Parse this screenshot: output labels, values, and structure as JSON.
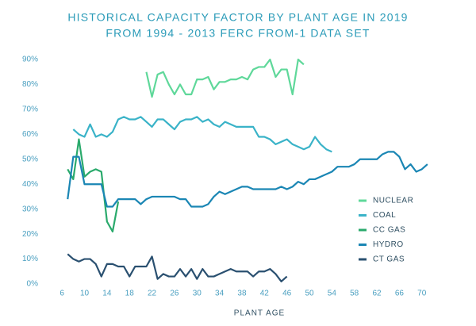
{
  "chart_data": {
    "type": "line",
    "title": "HISTORICAL CAPACITY FACTOR BY PLANT AGE IN 2019",
    "subtitle": "FROM 1994 - 2013 FERC FROM-1 DATA SET",
    "x_label": "PLANT AGE",
    "xlim": [
      4,
      73
    ],
    "xticks": [
      6,
      10,
      14,
      18,
      22,
      26,
      30,
      34,
      38,
      42,
      46,
      50,
      54,
      58,
      62,
      66,
      70
    ],
    "ylim": [
      0,
      90
    ],
    "yticks": [
      {
        "value": 0,
        "label": "0%"
      },
      {
        "value": 10,
        "label": "10%"
      },
      {
        "value": 20,
        "label": "20%"
      },
      {
        "value": 30,
        "label": "30%"
      },
      {
        "value": 40,
        "label": "40%"
      },
      {
        "value": 50,
        "label": "50%"
      },
      {
        "value": 60,
        "label": "60%"
      },
      {
        "value": 70,
        "label": "70%"
      },
      {
        "value": 80,
        "label": "80%"
      },
      {
        "value": 90,
        "label": "90%"
      }
    ],
    "grid": false,
    "legend_position": "right",
    "series": [
      {
        "name": "NUCLEAR",
        "color": "#5fd89a",
        "x": [
          21,
          22,
          23,
          24,
          25,
          26,
          27,
          28,
          29,
          30,
          31,
          32,
          33,
          34,
          35,
          36,
          37,
          38,
          39,
          40,
          41,
          42,
          43,
          44,
          45,
          46,
          47,
          48,
          49
        ],
        "values": [
          85,
          75,
          84,
          85,
          80,
          76,
          80,
          76,
          76,
          82,
          82,
          83,
          78,
          81,
          81,
          82,
          82,
          83,
          82,
          86,
          87,
          87,
          90,
          83,
          86,
          86,
          76,
          90,
          88
        ]
      },
      {
        "name": "COAL",
        "color": "#3ab3c8",
        "x": [
          8,
          9,
          10,
          11,
          12,
          13,
          14,
          15,
          16,
          17,
          18,
          19,
          20,
          21,
          22,
          23,
          24,
          25,
          26,
          27,
          28,
          29,
          30,
          31,
          32,
          33,
          34,
          35,
          36,
          37,
          38,
          39,
          40,
          41,
          42,
          43,
          44,
          45,
          46,
          47,
          48,
          49,
          50,
          51,
          52,
          53,
          54
        ],
        "values": [
          62,
          60,
          59,
          64,
          59,
          60,
          59,
          61,
          66,
          67,
          66,
          66,
          67,
          65,
          63,
          66,
          66,
          64,
          62,
          65,
          66,
          66,
          67,
          65,
          66,
          64,
          63,
          65,
          64,
          63,
          63,
          63,
          63,
          59,
          59,
          58,
          56,
          57,
          58,
          56,
          55,
          54,
          55,
          59,
          56,
          54,
          53
        ]
      },
      {
        "name": "CC GAS",
        "color": "#2aaa6c",
        "x": [
          7,
          8,
          9,
          10,
          11,
          12,
          13,
          14,
          15,
          16
        ],
        "values": [
          46,
          42,
          58,
          43,
          45,
          46,
          45,
          25,
          21,
          33
        ]
      },
      {
        "name": "HYDRO",
        "color": "#1a86b4",
        "x": [
          7,
          8,
          9,
          10,
          11,
          12,
          13,
          14,
          15,
          16,
          17,
          18,
          19,
          20,
          21,
          22,
          23,
          24,
          25,
          26,
          27,
          28,
          29,
          30,
          31,
          32,
          33,
          34,
          35,
          36,
          37,
          38,
          39,
          40,
          41,
          42,
          43,
          44,
          45,
          46,
          47,
          48,
          49,
          50,
          51,
          52,
          53,
          54,
          55,
          56,
          57,
          58,
          59,
          60,
          61,
          62,
          63,
          64,
          65,
          66,
          67,
          68,
          69,
          70,
          71
        ],
        "values": [
          34,
          51,
          51,
          40,
          40,
          40,
          40,
          31,
          31,
          34,
          34,
          34,
          34,
          32,
          34,
          35,
          35,
          35,
          35,
          35,
          34,
          34,
          31,
          31,
          31,
          32,
          35,
          37,
          36,
          37,
          38,
          39,
          39,
          38,
          38,
          38,
          38,
          38,
          39,
          38,
          39,
          41,
          40,
          42,
          42,
          43,
          44,
          45,
          47,
          47,
          47,
          48,
          50,
          50,
          50,
          50,
          52,
          53,
          53,
          51,
          46,
          48,
          45,
          46,
          48
        ]
      },
      {
        "name": "CT GAS",
        "color": "#2a5070",
        "x": [
          7,
          8,
          9,
          10,
          11,
          12,
          13,
          14,
          15,
          16,
          17,
          18,
          19,
          20,
          21,
          22,
          23,
          24,
          25,
          26,
          27,
          28,
          29,
          30,
          31,
          32,
          33,
          34,
          35,
          36,
          37,
          38,
          39,
          40,
          41,
          42,
          43,
          44,
          45,
          46
        ],
        "values": [
          12,
          10,
          9,
          10,
          10,
          8,
          3,
          8,
          8,
          7,
          7,
          3,
          7,
          7,
          7,
          11,
          2,
          4,
          3,
          3,
          6,
          3,
          6,
          2,
          6,
          3,
          3,
          4,
          5,
          6,
          5,
          5,
          5,
          3,
          5,
          5,
          6,
          4,
          1,
          3
        ]
      }
    ]
  }
}
